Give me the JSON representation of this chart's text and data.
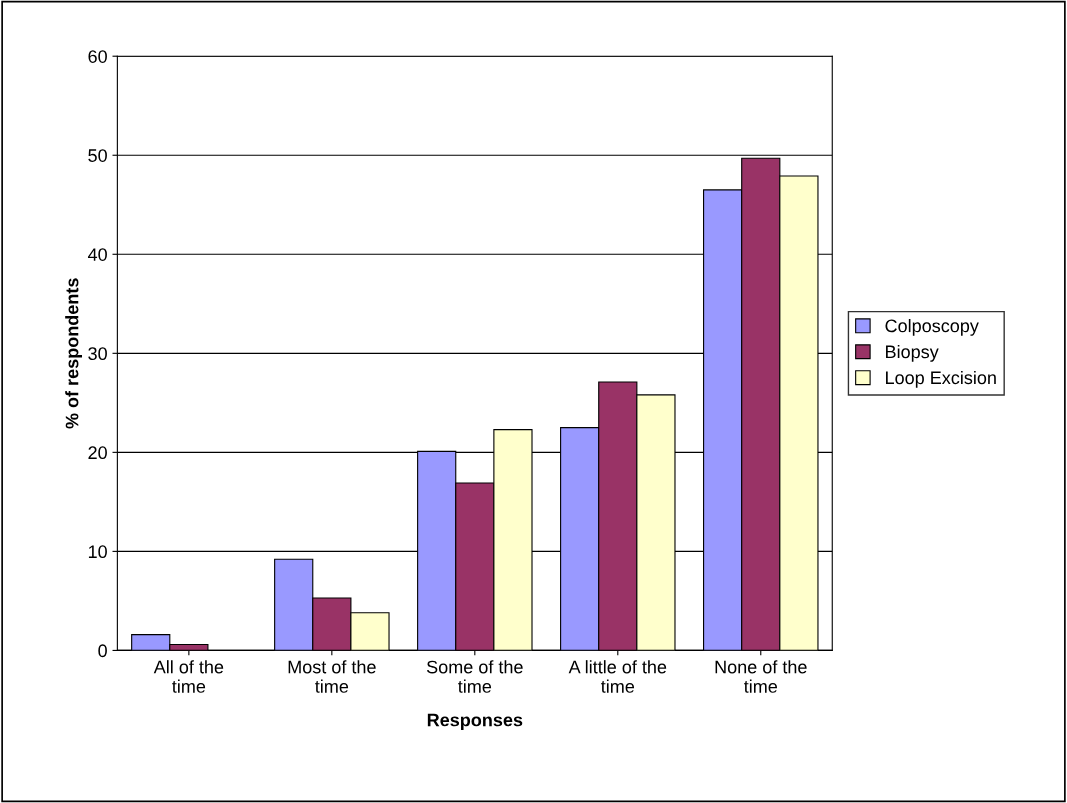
{
  "chart_data": {
    "type": "bar",
    "xlabel": "Responses",
    "ylabel": "% of respondents",
    "categories": [
      "All of the\ntime",
      "Most of the\ntime",
      "Some of the\ntime",
      "A little of the\ntime",
      "None of the\ntime"
    ],
    "series": [
      {
        "name": "Colposcopy",
        "color": "#9999ff",
        "values": [
          1.6,
          9.2,
          20.1,
          22.5,
          46.5
        ]
      },
      {
        "name": "Biopsy",
        "color": "#993366",
        "values": [
          0.6,
          5.3,
          16.9,
          27.1,
          49.7
        ]
      },
      {
        "name": "Loop Excision",
        "color": "#ffffcc",
        "values": [
          null,
          3.8,
          22.3,
          25.8,
          47.9
        ]
      }
    ],
    "ylim": [
      0,
      60
    ],
    "yticks": [
      0,
      10,
      20,
      30,
      40,
      50,
      60
    ],
    "grid": "y",
    "legend": "right"
  }
}
